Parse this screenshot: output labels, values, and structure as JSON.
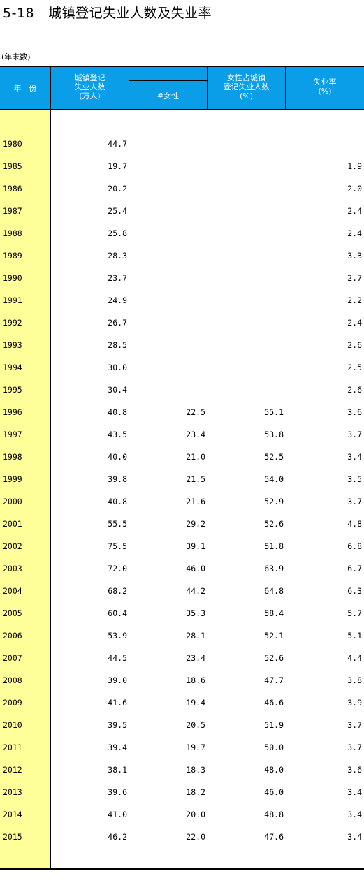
{
  "title": {
    "number": "5-18",
    "text": "城镇登记失业人数及失业率"
  },
  "unit_note": "(年末数)",
  "header": {
    "year": "年　份",
    "total_l1": "城镇登记",
    "total_l2": "失业人数",
    "total_l3": "(万人)",
    "female": "#女性",
    "pct_l1": "女性占城镇",
    "pct_l2": "登记失业人数",
    "pct_l3": "(%)",
    "rate_l1": "失业率",
    "rate_l2": "(%)"
  },
  "rows": [
    {
      "year": "1980",
      "total": "44.7",
      "female": "",
      "pct": "",
      "rate": ""
    },
    {
      "year": "1985",
      "total": "19.7",
      "female": "",
      "pct": "",
      "rate": "1.9"
    },
    {
      "year": "1986",
      "total": "20.2",
      "female": "",
      "pct": "",
      "rate": "2.0"
    },
    {
      "year": "1987",
      "total": "25.4",
      "female": "",
      "pct": "",
      "rate": "2.4"
    },
    {
      "year": "1988",
      "total": "25.8",
      "female": "",
      "pct": "",
      "rate": "2.4"
    },
    {
      "year": "1989",
      "total": "28.3",
      "female": "",
      "pct": "",
      "rate": "3.3"
    },
    {
      "year": "1990",
      "total": "23.7",
      "female": "",
      "pct": "",
      "rate": "2.7"
    },
    {
      "year": "1991",
      "total": "24.9",
      "female": "",
      "pct": "",
      "rate": "2.2"
    },
    {
      "year": "1992",
      "total": "26.7",
      "female": "",
      "pct": "",
      "rate": "2.4"
    },
    {
      "year": "1993",
      "total": "28.5",
      "female": "",
      "pct": "",
      "rate": "2.6"
    },
    {
      "year": "1994",
      "total": "30.0",
      "female": "",
      "pct": "",
      "rate": "2.5"
    },
    {
      "year": "1995",
      "total": "30.4",
      "female": "",
      "pct": "",
      "rate": "2.6"
    },
    {
      "year": "1996",
      "total": "40.8",
      "female": "22.5",
      "pct": "55.1",
      "rate": "3.6"
    },
    {
      "year": "1997",
      "total": "43.5",
      "female": "23.4",
      "pct": "53.8",
      "rate": "3.7"
    },
    {
      "year": "1998",
      "total": "40.0",
      "female": "21.0",
      "pct": "52.5",
      "rate": "3.4"
    },
    {
      "year": "1999",
      "total": "39.8",
      "female": "21.5",
      "pct": "54.0",
      "rate": "3.5"
    },
    {
      "year": "2000",
      "total": "40.8",
      "female": "21.6",
      "pct": "52.9",
      "rate": "3.7"
    },
    {
      "year": "2001",
      "total": "55.5",
      "female": "29.2",
      "pct": "52.6",
      "rate": "4.8"
    },
    {
      "year": "2002",
      "total": "75.5",
      "female": "39.1",
      "pct": "51.8",
      "rate": "6.8"
    },
    {
      "year": "2003",
      "total": "72.0",
      "female": "46.0",
      "pct": "63.9",
      "rate": "6.7"
    },
    {
      "year": "2004",
      "total": "68.2",
      "female": "44.2",
      "pct": "64.8",
      "rate": "6.3"
    },
    {
      "year": "2005",
      "total": "60.4",
      "female": "35.3",
      "pct": "58.4",
      "rate": "5.7"
    },
    {
      "year": "2006",
      "total": "53.9",
      "female": "28.1",
      "pct": "52.1",
      "rate": "5.1"
    },
    {
      "year": "2007",
      "total": "44.5",
      "female": "23.4",
      "pct": "52.6",
      "rate": "4.4"
    },
    {
      "year": "2008",
      "total": "39.0",
      "female": "18.6",
      "pct": "47.7",
      "rate": "3.8"
    },
    {
      "year": "2009",
      "total": "41.6",
      "female": "19.4",
      "pct": "46.6",
      "rate": "3.9"
    },
    {
      "year": "2010",
      "total": "39.5",
      "female": "20.5",
      "pct": "51.9",
      "rate": "3.7"
    },
    {
      "year": "2011",
      "total": "39.4",
      "female": "19.7",
      "pct": "50.0",
      "rate": "3.7"
    },
    {
      "year": "2012",
      "total": "38.1",
      "female": "18.3",
      "pct": "48.0",
      "rate": "3.6"
    },
    {
      "year": "2013",
      "total": "39.6",
      "female": "18.2",
      "pct": "46.0",
      "rate": "3.4"
    },
    {
      "year": "2014",
      "total": "41.0",
      "female": "20.0",
      "pct": "48.8",
      "rate": "3.4"
    },
    {
      "year": "2015",
      "total": "46.2",
      "female": "22.0",
      "pct": "47.6",
      "rate": "3.4"
    }
  ]
}
